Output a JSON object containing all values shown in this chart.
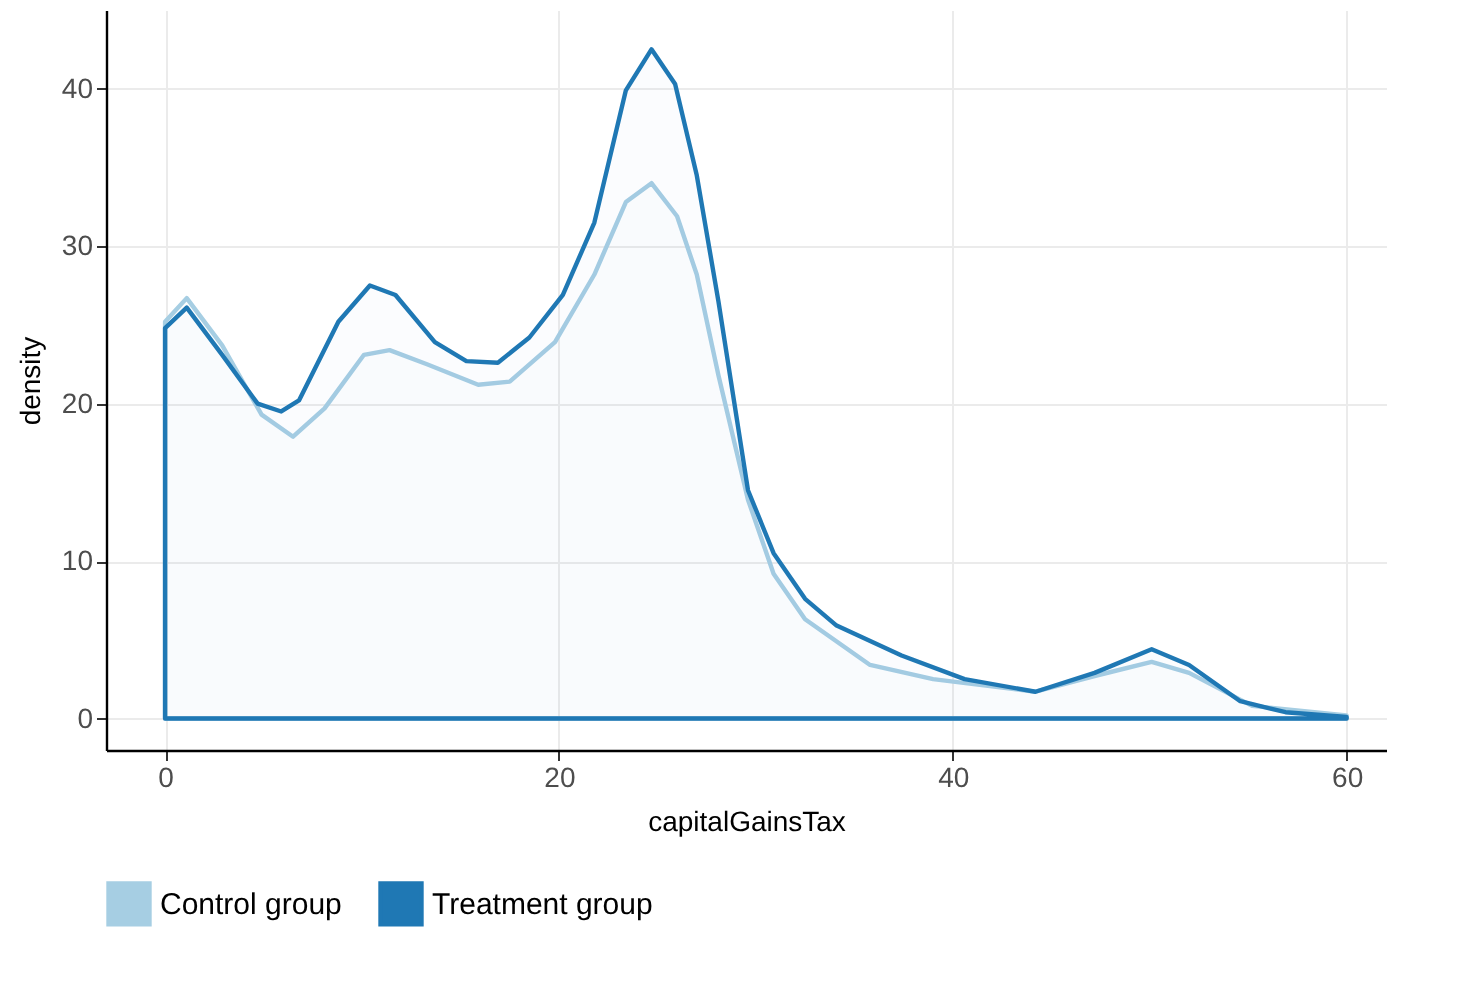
{
  "chart_data": {
    "type": "area",
    "xlabel": "capitalGainsTax",
    "ylabel": "density",
    "xlim": [
      -3,
      62
    ],
    "ylim": [
      -2,
      45
    ],
    "xticks": [
      0,
      20,
      40,
      60
    ],
    "yticks": [
      0,
      10,
      20,
      30,
      40
    ],
    "grid": true,
    "legend": "bottom",
    "series": [
      {
        "name": "Control group",
        "color": "#a6cee3",
        "x": [
          0,
          1.1,
          2.9,
          4.9,
          6.5,
          8.1,
          10.1,
          11.4,
          13.3,
          15.9,
          17.5,
          19.8,
          21.8,
          23.4,
          24.7,
          26.0,
          27.0,
          28.1,
          29.6,
          30.9,
          32.5,
          35.8,
          39.0,
          44.2,
          47.2,
          50.1,
          52.0,
          55.2,
          60
        ],
        "values": [
          25.2,
          26.7,
          23.7,
          19.3,
          17.9,
          19.7,
          23.1,
          23.4,
          22.5,
          21.2,
          21.4,
          23.9,
          28.2,
          32.8,
          34.0,
          31.9,
          28.2,
          21.8,
          13.9,
          9.2,
          6.3,
          3.4,
          2.5,
          1.7,
          2.7,
          3.6,
          2.9,
          0.8,
          0.2
        ]
      },
      {
        "name": "Treatment group",
        "color": "#1f78b4",
        "x": [
          0,
          1.1,
          2.9,
          4.7,
          5.9,
          6.8,
          8.8,
          10.4,
          11.7,
          13.7,
          15.3,
          16.9,
          18.5,
          20.2,
          21.8,
          23.4,
          24.7,
          25.9,
          27.0,
          28.1,
          29.6,
          30.9,
          32.5,
          34.1,
          37.4,
          40.6,
          44.2,
          47.2,
          50.1,
          52.0,
          54.6,
          56.9,
          60
        ],
        "values": [
          24.8,
          26.1,
          23.1,
          20.0,
          19.5,
          20.2,
          25.2,
          27.5,
          26.9,
          23.9,
          22.7,
          22.6,
          24.2,
          26.9,
          31.5,
          39.9,
          42.5,
          40.3,
          34.5,
          26.5,
          14.5,
          10.5,
          7.6,
          5.9,
          4.0,
          2.5,
          1.7,
          2.9,
          4.4,
          3.4,
          1.1,
          0.4,
          0.1
        ]
      }
    ]
  }
}
